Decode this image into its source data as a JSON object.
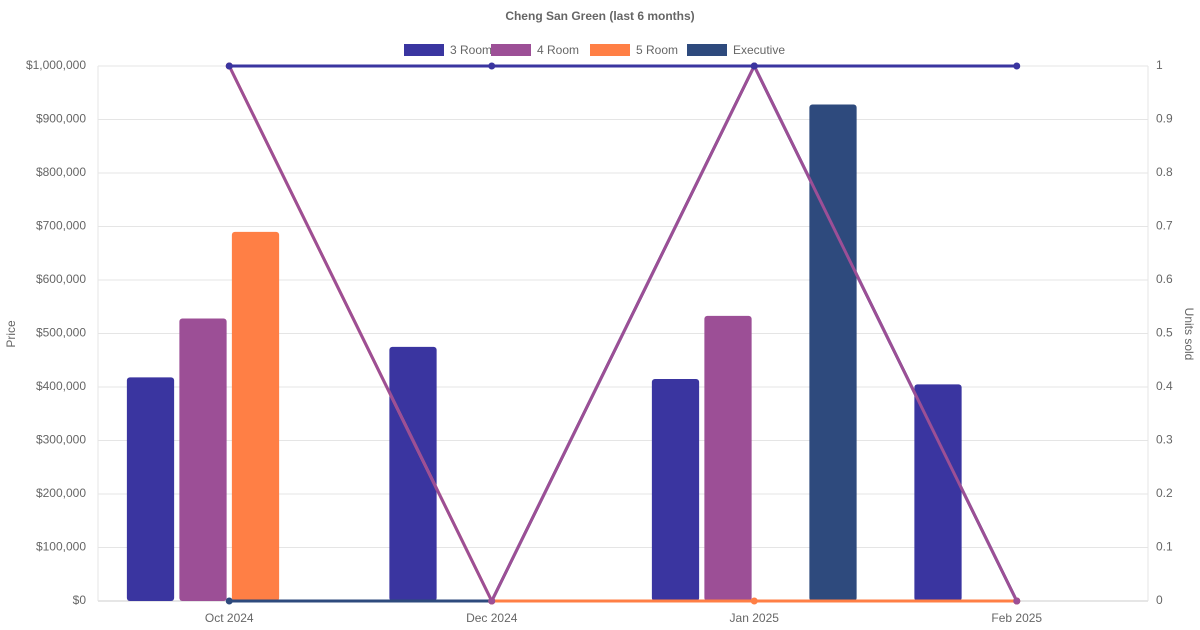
{
  "chart_data": {
    "type": "bar-line",
    "title": "Cheng San Green (last 6 months)",
    "y_label": "Price",
    "y2_label": "Units sold",
    "categories": [
      "Oct 2024",
      "Dec 2024",
      "Jan 2025",
      "Feb 2025"
    ],
    "series": [
      {
        "name": "3 Room",
        "color": "#3a35a0",
        "values": [
          418000,
          475000,
          415000,
          405000
        ],
        "units_sold": [
          1,
          1,
          1,
          1
        ]
      },
      {
        "name": "4 Room",
        "color": "#9c4f96",
        "values": [
          528000,
          null,
          533000,
          null
        ],
        "units_sold": [
          1,
          0,
          1,
          0
        ]
      },
      {
        "name": "5 Room",
        "color": "#ff7f45",
        "values": [
          690000,
          null,
          null,
          null
        ],
        "units_sold": [
          1,
          0,
          0,
          0
        ]
      },
      {
        "name": "Executive",
        "color": "#2e4a7d",
        "values": [
          null,
          null,
          928000,
          null
        ],
        "units_sold": [
          0,
          0,
          1,
          0
        ]
      }
    ],
    "ylim": [
      0,
      1000000
    ],
    "yticks": [
      {
        "value": 0,
        "label": "$0"
      },
      {
        "value": 100000,
        "label": "$100,000"
      },
      {
        "value": 200000,
        "label": "$200,000"
      },
      {
        "value": 300000,
        "label": "$300,000"
      },
      {
        "value": 400000,
        "label": "$400,000"
      },
      {
        "value": 500000,
        "label": "$500,000"
      },
      {
        "value": 600000,
        "label": "$600,000"
      },
      {
        "value": 700000,
        "label": "$700,000"
      },
      {
        "value": 800000,
        "label": "$800,000"
      },
      {
        "value": 900000,
        "label": "$900,000"
      },
      {
        "value": 1000000,
        "label": "$1,000,000"
      }
    ],
    "y2lim": [
      0,
      1
    ],
    "y2ticks": [
      0,
      0.1,
      0.2,
      0.3,
      0.4,
      0.5,
      0.6,
      0.7,
      0.8,
      0.9,
      1
    ],
    "grid": true,
    "legend": "top"
  }
}
